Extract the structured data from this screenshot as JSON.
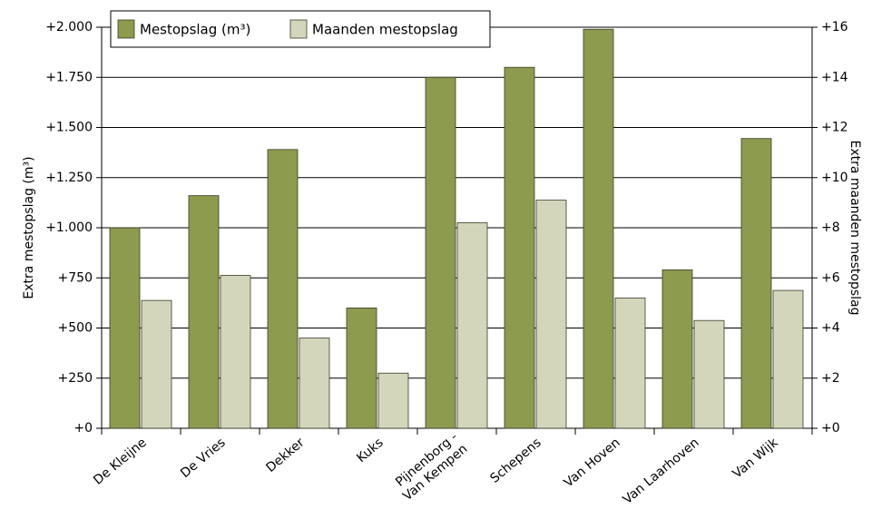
{
  "chart_data": {
    "type": "bar",
    "categories": [
      "De Kleijne",
      "De Vries",
      "Dekker",
      "Kuks",
      "Pijnenborg -\nVan Kempen",
      "Schepens",
      "Van Hoven",
      "Van Laarhoven",
      "Van Wijk"
    ],
    "series": [
      {
        "name": "Mestopslag (m³)",
        "color": "#8c9b4e",
        "values": [
          1000,
          1160,
          1390,
          600,
          1750,
          1800,
          1990,
          790,
          1445
        ]
      },
      {
        "name": "Maanden mestopslag",
        "color": "#d3d6ba",
        "axis": "y2",
        "values": [
          5.1,
          6.1,
          3.6,
          2.2,
          8.2,
          9.1,
          5.2,
          4.3,
          5.5
        ]
      }
    ],
    "ylabel": "Extra mestopslag (m³)",
    "y2label": "Extra maanden mestopslag",
    "ylim": [
      0,
      2000
    ],
    "yticks": [
      {
        "value": 0,
        "label": "+0"
      },
      {
        "value": 250,
        "label": "+250"
      },
      {
        "value": 500,
        "label": "+500"
      },
      {
        "value": 750,
        "label": "+750"
      },
      {
        "value": 1000,
        "label": "+1.000"
      },
      {
        "value": 1250,
        "label": "+1.250"
      },
      {
        "value": 1500,
        "label": "+1.500"
      },
      {
        "value": 1750,
        "label": "+1.750"
      },
      {
        "value": 2000,
        "label": "+2.000"
      }
    ],
    "y2lim": [
      0,
      16
    ],
    "y2ticks": [
      {
        "value": 0,
        "label": "+0"
      },
      {
        "value": 2,
        "label": "+2"
      },
      {
        "value": 4,
        "label": "+4"
      },
      {
        "value": 6,
        "label": "+6"
      },
      {
        "value": 8,
        "label": "+8"
      },
      {
        "value": 10,
        "label": "+10"
      },
      {
        "value": 12,
        "label": "+12"
      },
      {
        "value": 14,
        "label": "+14"
      },
      {
        "value": 16,
        "label": "+16"
      }
    ],
    "grid": true,
    "legend": "top-left"
  }
}
